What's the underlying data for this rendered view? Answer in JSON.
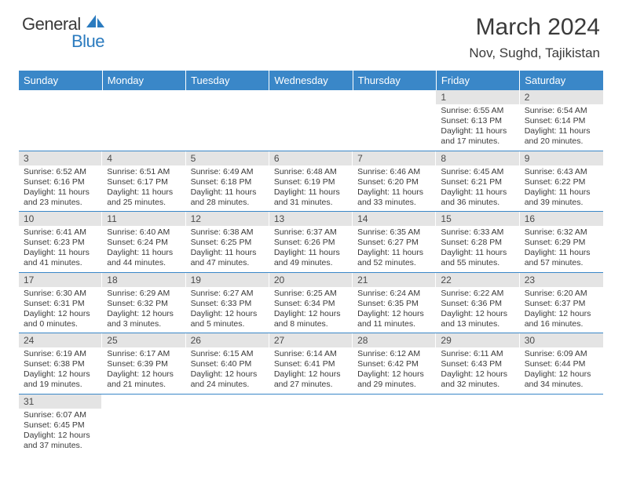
{
  "logo": {
    "text1": "General",
    "text2": "Blue",
    "icon_color": "#2b7bbf",
    "text1_color": "#3a3a3a",
    "text2_color": "#2b7bbf"
  },
  "header": {
    "month_title": "March 2024",
    "location": "Nov, Sughd, Tajikistan"
  },
  "colors": {
    "header_bg": "#3a87c8",
    "header_fg": "#ffffff",
    "daynum_bg": "#e4e4e4",
    "text": "#3a3a3a",
    "rule": "#3a87c8"
  },
  "weekdays": [
    "Sunday",
    "Monday",
    "Tuesday",
    "Wednesday",
    "Thursday",
    "Friday",
    "Saturday"
  ],
  "weeks": [
    [
      null,
      null,
      null,
      null,
      null,
      {
        "n": "1",
        "sr": "6:55 AM",
        "ss": "6:13 PM",
        "dl": "11 hours and 17 minutes."
      },
      {
        "n": "2",
        "sr": "6:54 AM",
        "ss": "6:14 PM",
        "dl": "11 hours and 20 minutes."
      }
    ],
    [
      {
        "n": "3",
        "sr": "6:52 AM",
        "ss": "6:16 PM",
        "dl": "11 hours and 23 minutes."
      },
      {
        "n": "4",
        "sr": "6:51 AM",
        "ss": "6:17 PM",
        "dl": "11 hours and 25 minutes."
      },
      {
        "n": "5",
        "sr": "6:49 AM",
        "ss": "6:18 PM",
        "dl": "11 hours and 28 minutes."
      },
      {
        "n": "6",
        "sr": "6:48 AM",
        "ss": "6:19 PM",
        "dl": "11 hours and 31 minutes."
      },
      {
        "n": "7",
        "sr": "6:46 AM",
        "ss": "6:20 PM",
        "dl": "11 hours and 33 minutes."
      },
      {
        "n": "8",
        "sr": "6:45 AM",
        "ss": "6:21 PM",
        "dl": "11 hours and 36 minutes."
      },
      {
        "n": "9",
        "sr": "6:43 AM",
        "ss": "6:22 PM",
        "dl": "11 hours and 39 minutes."
      }
    ],
    [
      {
        "n": "10",
        "sr": "6:41 AM",
        "ss": "6:23 PM",
        "dl": "11 hours and 41 minutes."
      },
      {
        "n": "11",
        "sr": "6:40 AM",
        "ss": "6:24 PM",
        "dl": "11 hours and 44 minutes."
      },
      {
        "n": "12",
        "sr": "6:38 AM",
        "ss": "6:25 PM",
        "dl": "11 hours and 47 minutes."
      },
      {
        "n": "13",
        "sr": "6:37 AM",
        "ss": "6:26 PM",
        "dl": "11 hours and 49 minutes."
      },
      {
        "n": "14",
        "sr": "6:35 AM",
        "ss": "6:27 PM",
        "dl": "11 hours and 52 minutes."
      },
      {
        "n": "15",
        "sr": "6:33 AM",
        "ss": "6:28 PM",
        "dl": "11 hours and 55 minutes."
      },
      {
        "n": "16",
        "sr": "6:32 AM",
        "ss": "6:29 PM",
        "dl": "11 hours and 57 minutes."
      }
    ],
    [
      {
        "n": "17",
        "sr": "6:30 AM",
        "ss": "6:31 PM",
        "dl": "12 hours and 0 minutes."
      },
      {
        "n": "18",
        "sr": "6:29 AM",
        "ss": "6:32 PM",
        "dl": "12 hours and 3 minutes."
      },
      {
        "n": "19",
        "sr": "6:27 AM",
        "ss": "6:33 PM",
        "dl": "12 hours and 5 minutes."
      },
      {
        "n": "20",
        "sr": "6:25 AM",
        "ss": "6:34 PM",
        "dl": "12 hours and 8 minutes."
      },
      {
        "n": "21",
        "sr": "6:24 AM",
        "ss": "6:35 PM",
        "dl": "12 hours and 11 minutes."
      },
      {
        "n": "22",
        "sr": "6:22 AM",
        "ss": "6:36 PM",
        "dl": "12 hours and 13 minutes."
      },
      {
        "n": "23",
        "sr": "6:20 AM",
        "ss": "6:37 PM",
        "dl": "12 hours and 16 minutes."
      }
    ],
    [
      {
        "n": "24",
        "sr": "6:19 AM",
        "ss": "6:38 PM",
        "dl": "12 hours and 19 minutes."
      },
      {
        "n": "25",
        "sr": "6:17 AM",
        "ss": "6:39 PM",
        "dl": "12 hours and 21 minutes."
      },
      {
        "n": "26",
        "sr": "6:15 AM",
        "ss": "6:40 PM",
        "dl": "12 hours and 24 minutes."
      },
      {
        "n": "27",
        "sr": "6:14 AM",
        "ss": "6:41 PM",
        "dl": "12 hours and 27 minutes."
      },
      {
        "n": "28",
        "sr": "6:12 AM",
        "ss": "6:42 PM",
        "dl": "12 hours and 29 minutes."
      },
      {
        "n": "29",
        "sr": "6:11 AM",
        "ss": "6:43 PM",
        "dl": "12 hours and 32 minutes."
      },
      {
        "n": "30",
        "sr": "6:09 AM",
        "ss": "6:44 PM",
        "dl": "12 hours and 34 minutes."
      }
    ],
    [
      {
        "n": "31",
        "sr": "6:07 AM",
        "ss": "6:45 PM",
        "dl": "12 hours and 37 minutes."
      },
      null,
      null,
      null,
      null,
      null,
      null
    ]
  ],
  "labels": {
    "sunrise": "Sunrise:",
    "sunset": "Sunset:",
    "daylight": "Daylight:"
  }
}
